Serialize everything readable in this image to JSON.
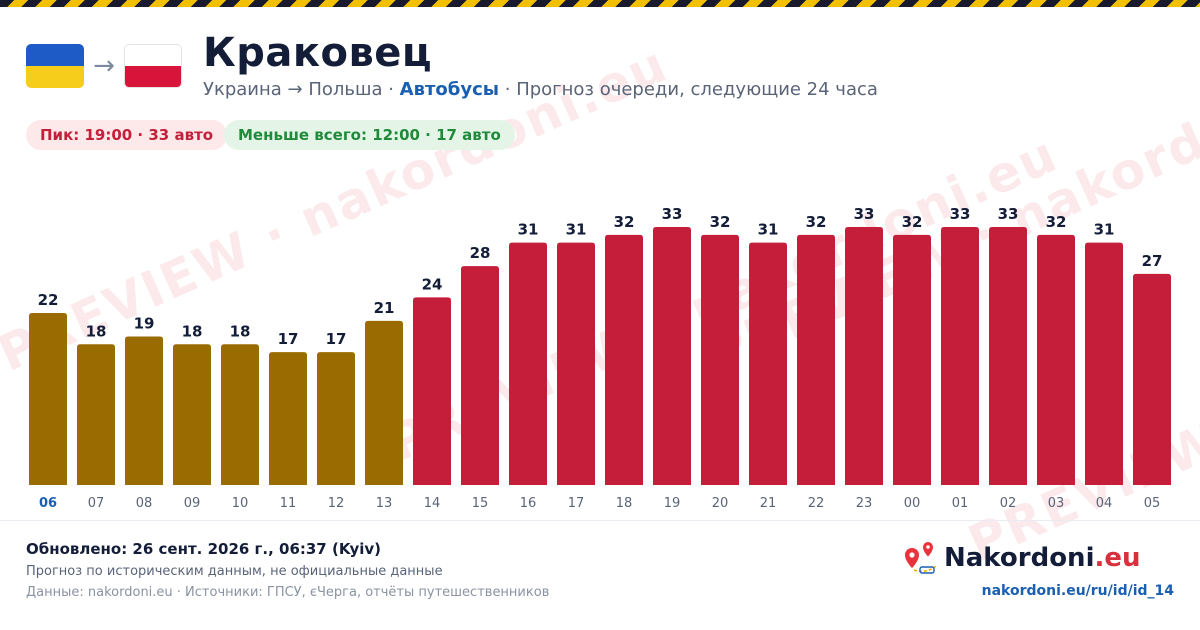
{
  "header": {
    "title": "Краковец",
    "route": "Украина → Польша · ",
    "vehicle": "Автобусы",
    "description": " · Прогноз очереди, следующие 24 часа",
    "arrow": "→"
  },
  "badges": {
    "peak": "Пик: 19:00 · 33 авто",
    "low": "Меньше всего: 12:00 · 17 авто"
  },
  "watermark_text": "PREVIEW · nakordoni.eu",
  "footer": {
    "updated": "Обновлено: 26 сент. 2026 г., 06:37 (Kyiv)",
    "note": "Прогноз по историческим данным, не официальные данные",
    "sources": "Данные: nakordoni.eu · Источники: ГПСУ, єЧерга, отчёты путешественников",
    "brand_name": "Nakordoni",
    "brand_tld": ".eu",
    "url": "nakordoni.eu/ru/id/id_14"
  },
  "colors": {
    "current": "#9a6b00",
    "high": "#c41e3a",
    "current_hour_label": "#1a5fb0",
    "hour_label": "#5a6478",
    "value_label": "#131d38"
  },
  "chart_data": {
    "type": "bar",
    "categories": [
      "06",
      "07",
      "08",
      "09",
      "10",
      "11",
      "12",
      "13",
      "14",
      "15",
      "16",
      "17",
      "18",
      "19",
      "20",
      "21",
      "22",
      "23",
      "00",
      "01",
      "02",
      "03",
      "04",
      "05"
    ],
    "values": [
      22,
      18,
      19,
      18,
      18,
      17,
      17,
      21,
      24,
      28,
      31,
      31,
      32,
      33,
      32,
      31,
      32,
      33,
      32,
      33,
      33,
      32,
      31,
      27
    ],
    "bar_colors": [
      "current",
      "current",
      "current",
      "current",
      "current",
      "current",
      "current",
      "current",
      "high",
      "high",
      "high",
      "high",
      "high",
      "high",
      "high",
      "high",
      "high",
      "high",
      "high",
      "high",
      "high",
      "high",
      "high",
      "high"
    ],
    "highlight_category": "06",
    "ylim": [
      0,
      33
    ],
    "data_labels": true,
    "title": "",
    "xlabel": "",
    "ylabel": ""
  }
}
